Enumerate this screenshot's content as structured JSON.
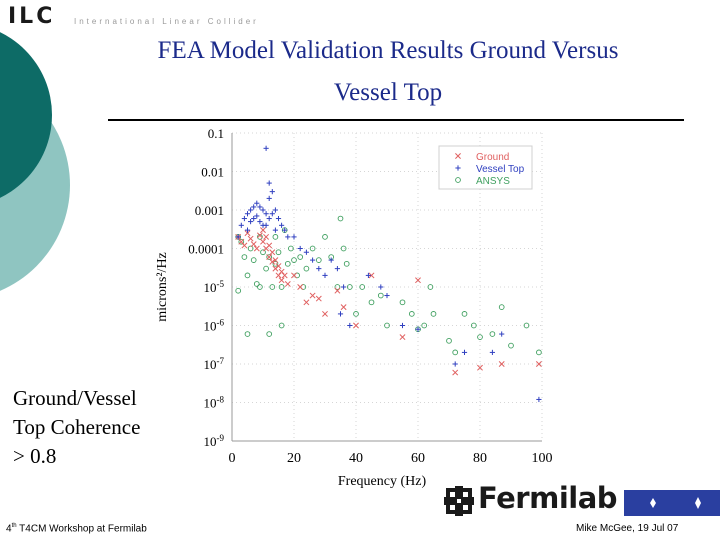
{
  "header": {
    "logo": "ILC",
    "logo_subtitle": "International Linear Collider"
  },
  "slide": {
    "title_line1": "FEA Model Validation Results Ground Versus",
    "title_line2": "Vessel Top",
    "coherence_note": [
      "Ground/Vessel",
      "Top Coherence",
      "> 0.8"
    ]
  },
  "footer": {
    "left_prefix": "4",
    "left_sup": "th",
    "left_rest": " T4CM Workshop at Fermilab",
    "right": "Mike McGee, 19 Jul 07",
    "brand": "Fermilab"
  },
  "colors": {
    "teal_dark": "#0d6b66",
    "teal_light": "#8fc5c1",
    "title_blue": "#1b2a8a",
    "ground": "#e06060",
    "vessel_top": "#3040c0",
    "ansys": "#40a060"
  },
  "chart_data": {
    "type": "scatter",
    "xlabel": "Frequency (Hz)",
    "ylabel": "microns²/Hz",
    "y_scale": "log",
    "xlim": [
      0,
      100
    ],
    "ylim": [
      1e-09,
      0.1
    ],
    "x_ticks": [
      "0",
      "20",
      "40",
      "60",
      "80",
      "100"
    ],
    "y_ticks": [
      "0.1",
      "0.01",
      "0.001",
      "0.0001",
      "10-5",
      "10-6",
      "10-7",
      "10-8",
      "10-9"
    ],
    "legend_position": "top-right",
    "series": [
      {
        "name": "Ground",
        "marker": "x",
        "color": "#e06060",
        "points": [
          [
            2,
            0.0002
          ],
          [
            3,
            0.00015
          ],
          [
            4,
            0.00012
          ],
          [
            5,
            0.00025
          ],
          [
            6,
            0.00018
          ],
          [
            7,
            0.00013
          ],
          [
            8,
            0.0001
          ],
          [
            9,
            0.00022
          ],
          [
            10,
            0.0003
          ],
          [
            10,
            0.00015
          ],
          [
            11,
            0.0002
          ],
          [
            11,
            0.0001
          ],
          [
            12,
            0.00012
          ],
          [
            12,
            6e-05
          ],
          [
            13,
            8e-05
          ],
          [
            13,
            4.5e-05
          ],
          [
            14,
            5e-05
          ],
          [
            14,
            3e-05
          ],
          [
            15,
            3.5e-05
          ],
          [
            15,
            2e-05
          ],
          [
            16,
            2.5e-05
          ],
          [
            16,
            1.5e-05
          ],
          [
            17,
            2e-05
          ],
          [
            18,
            1.2e-05
          ],
          [
            20,
            2e-05
          ],
          [
            22,
            1e-05
          ],
          [
            24,
            4e-06
          ],
          [
            26,
            6e-06
          ],
          [
            28,
            5e-06
          ],
          [
            30,
            2e-06
          ],
          [
            34,
            8e-06
          ],
          [
            36,
            3e-06
          ],
          [
            40,
            1e-06
          ],
          [
            45,
            2e-05
          ],
          [
            55,
            5e-07
          ],
          [
            60,
            1.5e-05
          ],
          [
            72,
            6e-08
          ],
          [
            80,
            8e-08
          ],
          [
            87,
            1e-07
          ],
          [
            99,
            1e-07
          ]
        ]
      },
      {
        "name": "Vessel Top",
        "marker": "+",
        "color": "#3040c0",
        "points": [
          [
            2,
            0.0002
          ],
          [
            3,
            0.0004
          ],
          [
            4,
            0.0006
          ],
          [
            5,
            0.0008
          ],
          [
            5,
            0.0003
          ],
          [
            6,
            0.001
          ],
          [
            6,
            0.0005
          ],
          [
            7,
            0.0012
          ],
          [
            7,
            0.0006
          ],
          [
            8,
            0.0015
          ],
          [
            8,
            0.0007
          ],
          [
            9,
            0.0012
          ],
          [
            9,
            0.0005
          ],
          [
            10,
            0.001
          ],
          [
            10,
            0.0004
          ],
          [
            11,
            0.0008
          ],
          [
            11,
            0.0004
          ],
          [
            12,
            0.002
          ],
          [
            12,
            0.0006
          ],
          [
            13,
            0.003
          ],
          [
            13,
            0.0008
          ],
          [
            14,
            0.001
          ],
          [
            14,
            0.0003
          ],
          [
            15,
            0.0006
          ],
          [
            16,
            0.0004
          ],
          [
            17,
            0.0003
          ],
          [
            18,
            0.0002
          ],
          [
            20,
            0.0002
          ],
          [
            22,
            0.0001
          ],
          [
            24,
            8e-05
          ],
          [
            26,
            5e-05
          ],
          [
            28,
            3e-05
          ],
          [
            30,
            2e-05
          ],
          [
            32,
            5e-05
          ],
          [
            34,
            3e-05
          ],
          [
            35,
            2e-06
          ],
          [
            36,
            1e-05
          ],
          [
            38,
            1e-06
          ],
          [
            44,
            2e-05
          ],
          [
            48,
            1e-05
          ],
          [
            50,
            6e-06
          ],
          [
            55,
            1e-06
          ],
          [
            60,
            8e-07
          ],
          [
            72,
            1e-07
          ],
          [
            75,
            2e-07
          ],
          [
            84,
            2e-07
          ],
          [
            87,
            6e-07
          ],
          [
            99,
            1.2e-08
          ],
          [
            11,
            0.04
          ],
          [
            12,
            0.005
          ]
        ]
      },
      {
        "name": "ANSYS",
        "marker": "o",
        "color": "#40a060",
        "points": [
          [
            2,
            0.0002
          ],
          [
            2,
            8e-06
          ],
          [
            3,
            0.00015
          ],
          [
            4,
            6e-05
          ],
          [
            5,
            2e-05
          ],
          [
            6,
            0.0001
          ],
          [
            7,
            5e-05
          ],
          [
            8,
            1.2e-05
          ],
          [
            9,
            0.0002
          ],
          [
            9,
            1e-05
          ],
          [
            10,
            8e-05
          ],
          [
            11,
            3e-05
          ],
          [
            12,
            6e-05
          ],
          [
            13,
            1e-05
          ],
          [
            14,
            0.0002
          ],
          [
            14,
            4e-05
          ],
          [
            15,
            8e-05
          ],
          [
            16,
            1e-05
          ],
          [
            17,
            0.0003
          ],
          [
            18,
            4e-05
          ],
          [
            19,
            0.0001
          ],
          [
            20,
            5e-05
          ],
          [
            21,
            2e-05
          ],
          [
            22,
            6e-05
          ],
          [
            23,
            1e-05
          ],
          [
            24,
            3e-05
          ],
          [
            26,
            0.0001
          ],
          [
            28,
            5e-05
          ],
          [
            30,
            0.0002
          ],
          [
            32,
            6e-05
          ],
          [
            34,
            1e-05
          ],
          [
            35,
            0.0006
          ],
          [
            36,
            0.0001
          ],
          [
            37,
            4e-05
          ],
          [
            38,
            1e-05
          ],
          [
            40,
            2e-06
          ],
          [
            42,
            1e-05
          ],
          [
            45,
            4e-06
          ],
          [
            48,
            6e-06
          ],
          [
            50,
            1e-06
          ],
          [
            55,
            4e-06
          ],
          [
            58,
            2e-06
          ],
          [
            60,
            8e-07
          ],
          [
            62,
            1e-06
          ],
          [
            64,
            1e-05
          ],
          [
            65,
            2e-06
          ],
          [
            70,
            4e-07
          ],
          [
            72,
            2e-07
          ],
          [
            75,
            2e-06
          ],
          [
            78,
            1e-06
          ],
          [
            80,
            5e-07
          ],
          [
            84,
            6e-07
          ],
          [
            87,
            3e-06
          ],
          [
            90,
            3e-07
          ],
          [
            95,
            1e-06
          ],
          [
            99,
            2e-07
          ],
          [
            12,
            6e-07
          ],
          [
            16,
            1e-06
          ],
          [
            5,
            6e-07
          ]
        ]
      }
    ]
  }
}
